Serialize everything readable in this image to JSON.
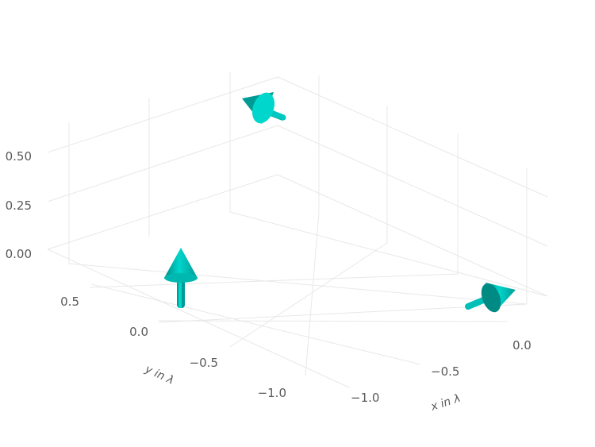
{
  "chart_data": {
    "type": "3d-quiver",
    "x_axis": {
      "label": "x in λ",
      "ticks": [
        "−1.0",
        "−0.5",
        "0.0"
      ]
    },
    "y_axis": {
      "label": "y in λ",
      "ticks": [
        "−1.0",
        "−0.5",
        "0.0",
        "0.5"
      ]
    },
    "z_axis": {
      "label": "",
      "ticks": [
        "0.00",
        "0.25",
        "0.50"
      ]
    },
    "grid": true,
    "arrows": [
      {
        "x": -1.1,
        "y": 0.05,
        "z": 0.0,
        "u": 0.0,
        "v": 0.0,
        "w": 1.0
      },
      {
        "x": -0.85,
        "y": 0.85,
        "z": 0.55,
        "u": 0.0,
        "v": -1.0,
        "w": 0.0
      },
      {
        "x": 0.1,
        "y": -0.9,
        "z": 0.0,
        "u": 1.0,
        "v": 0.0,
        "w": 0.0
      }
    ],
    "arrow_color": "#00c8c0"
  }
}
